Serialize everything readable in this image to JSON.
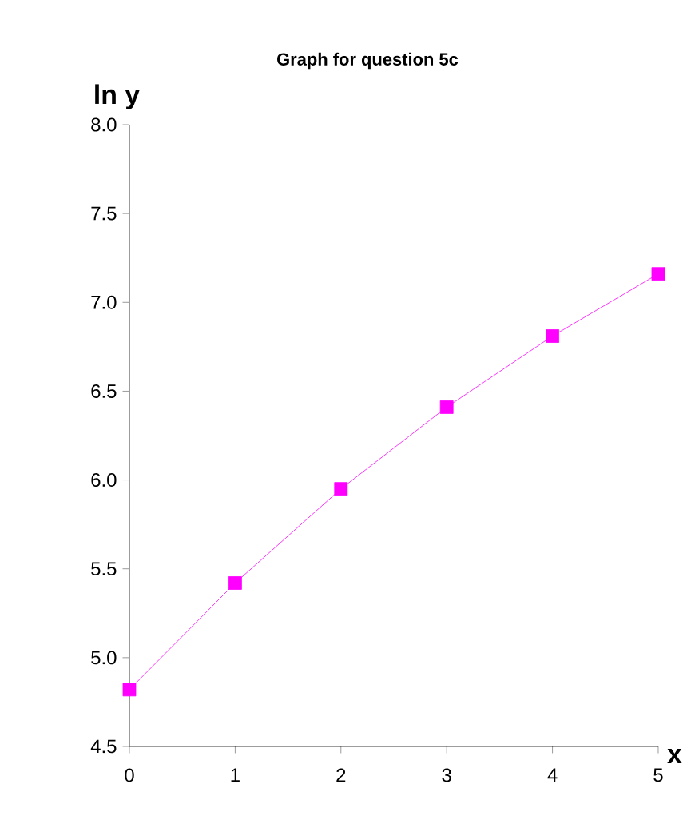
{
  "chart_data": {
    "type": "line",
    "title": "Graph for question 5c",
    "xlabel": "x",
    "ylabel": "ln y",
    "x": [
      0,
      1,
      2,
      3,
      4,
      5
    ],
    "series": [
      {
        "color": "#ff00ff",
        "values": [
          4.82,
          5.42,
          5.95,
          6.41,
          6.81,
          7.16
        ]
      }
    ],
    "xlim": [
      0,
      5
    ],
    "xticks": [
      0,
      1,
      2,
      3,
      4,
      5
    ],
    "ylim": [
      4.5,
      8.0
    ],
    "yticks": [
      {
        "value": 4.5,
        "label": "4.5"
      },
      {
        "value": 5.0,
        "label": "5.0"
      },
      {
        "value": 5.5,
        "label": "5.5"
      },
      {
        "value": 6.0,
        "label": "6.0"
      },
      {
        "value": 6.5,
        "label": "6.5"
      },
      {
        "value": 7.0,
        "label": "7.0"
      },
      {
        "value": 7.5,
        "label": "7.5"
      },
      {
        "value": 8.0,
        "label": "8.0"
      }
    ],
    "marker": "square",
    "line_style": "solid",
    "grid": false
  }
}
